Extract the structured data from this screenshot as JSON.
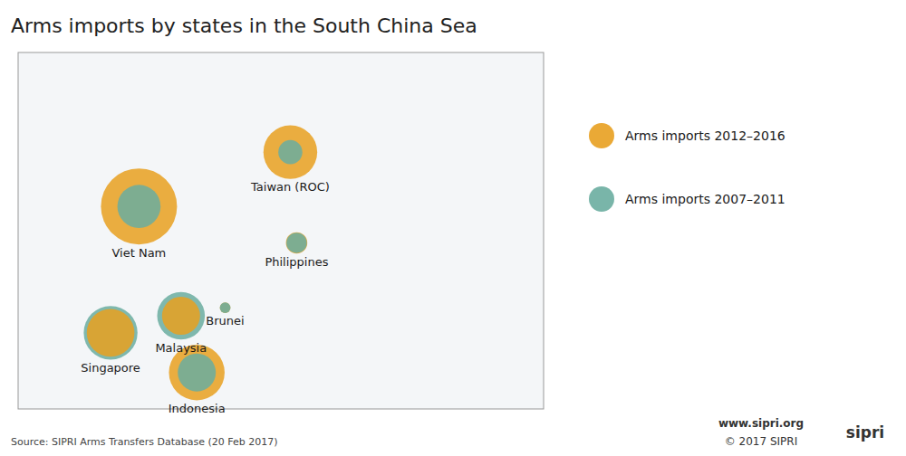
{
  "chart_data": {
    "type": "bubble",
    "title": "Arms imports by states in the South China Sea",
    "categories": [
      "Taiwan (ROC)",
      "Viet Nam",
      "Philippines",
      "Brunei",
      "Malaysia",
      "Singapore",
      "Indonesia"
    ],
    "x": [
      120.9,
      106.5,
      121.5,
      114.7,
      110.5,
      103.8,
      112.0
    ],
    "xlim": [
      95,
      145
    ],
    "ylim": [
      -8,
      36
    ],
    "tick_labels": false,
    "grid": false,
    "legend": "right",
    "series": [
      {
        "name": "Arms imports 2012–2016",
        "color": "#E8A020",
        "values": [
          23.7,
          17.0,
          12.5,
          4.5,
          3.5,
          1.4,
          -3.5
        ],
        "sizes": [
          1400,
          2800,
          220,
          55,
          700,
          1100,
          1500
        ]
      },
      {
        "name": "Arms imports 2007–2011",
        "color": "#6AADA0",
        "values": [
          23.7,
          17.0,
          12.5,
          4.5,
          3.5,
          1.4,
          -3.5
        ],
        "sizes": [
          280,
          900,
          200,
          55,
          1100,
          1400,
          700
        ]
      }
    ],
    "annotations": [
      "Source: SIPRI Arms Transfers Database (20 Feb 2017)",
      "www.sipri.org",
      "© 2017 SIPRI",
      "sipri"
    ]
  }
}
